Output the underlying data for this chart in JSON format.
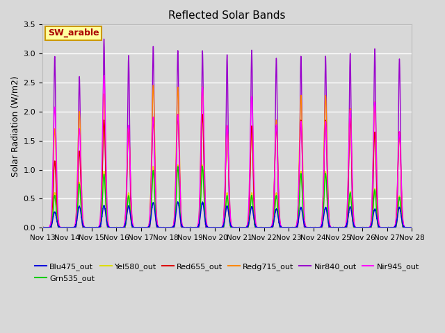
{
  "title": "Reflected Solar Bands",
  "ylabel": "Solar Radiation (W/m2)",
  "ylim": [
    0,
    3.5
  ],
  "yticks": [
    0.0,
    0.5,
    1.0,
    1.5,
    2.0,
    2.5,
    3.0,
    3.5
  ],
  "xtick_labels": [
    "Nov 13",
    "Nov 14",
    "Nov 15",
    "Nov 16",
    "Nov 17",
    "Nov 18",
    "Nov 19",
    "Nov 20",
    "Nov 21",
    "Nov 22",
    "Nov 23",
    "Nov 24",
    "Nov 25",
    "Nov 26",
    "Nov 27",
    "Nov 28"
  ],
  "legend_label": "SW_arable",
  "series_names": [
    "Blu475_out",
    "Grn535_out",
    "Yel580_out",
    "Red655_out",
    "Redg715_out",
    "Nir840_out",
    "Nir945_out"
  ],
  "series_colors": [
    "#0000dd",
    "#00cc00",
    "#dddd00",
    "#dd0000",
    "#ff8800",
    "#9900cc",
    "#ff00ff"
  ],
  "series_lw": [
    1.0,
    1.0,
    1.0,
    1.0,
    1.0,
    1.0,
    1.0
  ],
  "background_color": "#d8d8d8",
  "grid_color": "#ffffff",
  "annotation_box_color": "#ffffa0",
  "annotation_text_color": "#aa0000",
  "annotation_box_edge_color": "#cc9900",
  "n_days": 15,
  "samples_per_day": 480,
  "day_peaks": {
    "Nir840_out": [
      2.95,
      2.6,
      3.25,
      2.97,
      3.12,
      3.05,
      3.05,
      2.98,
      3.06,
      2.92,
      2.95,
      2.95,
      3.0,
      3.08,
      2.91
    ],
    "Nir945_out": [
      2.08,
      1.7,
      2.62,
      1.76,
      1.9,
      1.95,
      2.42,
      1.76,
      2.26,
      1.77,
      1.83,
      1.83,
      2.02,
      2.16,
      1.65
    ],
    "Red655_out": [
      1.15,
      1.32,
      1.85,
      1.75,
      1.9,
      1.95,
      1.95,
      1.75,
      1.75,
      1.75,
      1.85,
      1.85,
      1.88,
      1.65,
      1.65
    ],
    "Redg715_out": [
      1.7,
      2.0,
      2.3,
      1.75,
      2.45,
      2.42,
      2.42,
      1.75,
      1.75,
      1.85,
      2.28,
      2.28,
      2.05,
      2.16,
      1.65
    ],
    "Yel580_out": [
      0.6,
      0.78,
      0.97,
      0.6,
      1.05,
      1.08,
      1.08,
      0.6,
      0.6,
      0.6,
      0.97,
      0.97,
      0.62,
      0.67,
      0.55
    ],
    "Grn535_out": [
      0.55,
      0.75,
      0.92,
      0.55,
      0.98,
      1.05,
      1.05,
      0.55,
      0.55,
      0.55,
      0.93,
      0.93,
      0.6,
      0.65,
      0.52
    ],
    "Blu475_out": [
      0.27,
      0.37,
      0.38,
      0.37,
      0.43,
      0.44,
      0.44,
      0.37,
      0.36,
      0.32,
      0.35,
      0.35,
      0.36,
      0.32,
      0.35
    ]
  },
  "peak_widths": {
    "Nir840_out": 0.042,
    "Nir945_out": 0.065,
    "Red655_out": 0.06,
    "Redg715_out": 0.062,
    "Yel580_out": 0.058,
    "Grn535_out": 0.057,
    "Blu475_out": 0.07
  }
}
